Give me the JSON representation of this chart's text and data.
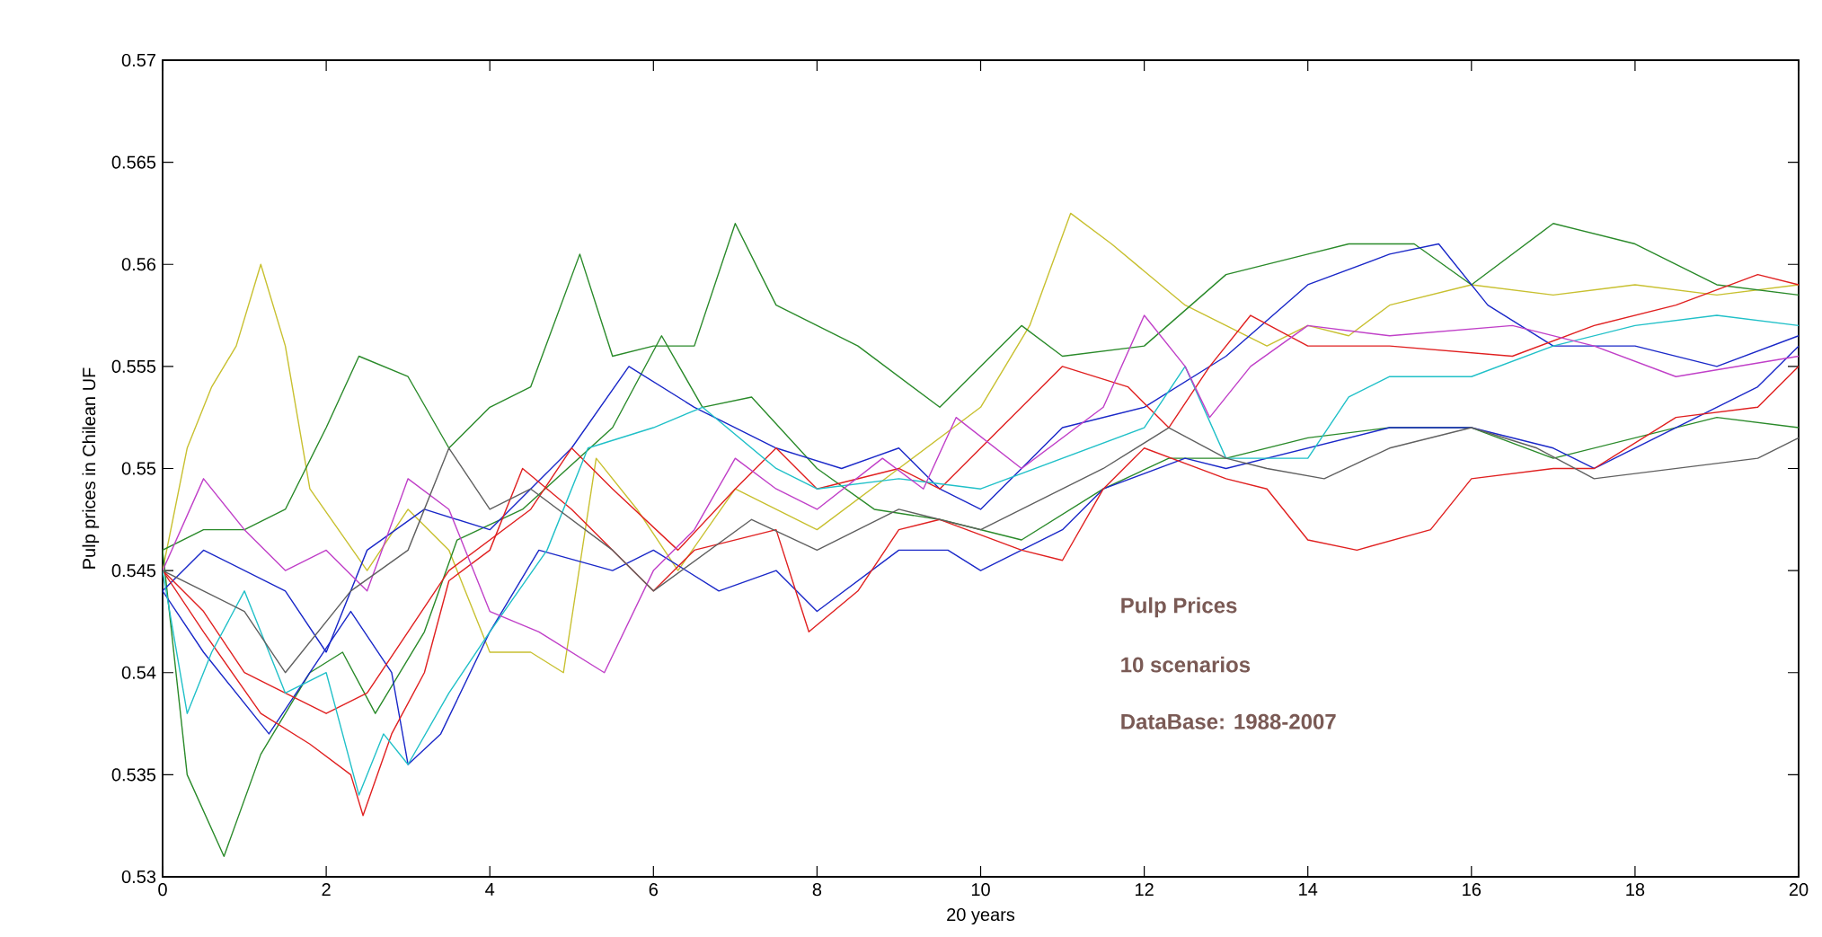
{
  "chart_data": {
    "type": "line",
    "xlabel": "20 years",
    "ylabel": "Pulp prices in Chilean UF",
    "annotations": [
      "Pulp Prices",
      "10 scenarios",
      "DataBase: 1988-2007"
    ],
    "xlim": [
      0,
      20
    ],
    "ylim": [
      0.53,
      0.57
    ],
    "xticks": [
      0,
      2,
      4,
      6,
      8,
      10,
      12,
      14,
      16,
      18,
      20
    ],
    "yticks": [
      0.53,
      0.535,
      0.54,
      0.545,
      0.55,
      0.555,
      0.56,
      0.565,
      0.57
    ],
    "series": [
      {
        "color": "#c8c030",
        "x": [
          0,
          0.3,
          0.6,
          0.9,
          1.2,
          1.5,
          1.8,
          2.5,
          3,
          3.5,
          4,
          4.5,
          4.9,
          5.3,
          5.8,
          6.3,
          7,
          8,
          9,
          10,
          10.6,
          11.1,
          11.6,
          12.5,
          13.5,
          14,
          14.5,
          15,
          16,
          17,
          18,
          19,
          20
        ],
        "values": [
          0.545,
          0.551,
          0.554,
          0.556,
          0.56,
          0.556,
          0.549,
          0.545,
          0.548,
          0.546,
          0.541,
          0.541,
          0.54,
          0.5505,
          0.548,
          0.545,
          0.549,
          0.547,
          0.55,
          0.553,
          0.557,
          0.5625,
          0.561,
          0.558,
          0.556,
          0.557,
          0.5565,
          0.558,
          0.559,
          0.5585,
          0.559,
          0.5585,
          0.559
        ]
      },
      {
        "color": "#2a8a2a",
        "x": [
          0,
          0.5,
          1,
          1.5,
          2,
          2.4,
          3,
          3.5,
          4,
          4.5,
          5.1,
          5.5,
          6,
          6.5,
          7,
          7.5,
          8.5,
          9.5,
          10.5,
          11,
          12,
          13,
          14,
          14.5,
          15.3,
          16,
          17,
          18,
          19,
          20
        ],
        "values": [
          0.546,
          0.547,
          0.547,
          0.548,
          0.552,
          0.5555,
          0.5545,
          0.551,
          0.553,
          0.554,
          0.5605,
          0.5555,
          0.556,
          0.556,
          0.562,
          0.558,
          0.556,
          0.553,
          0.557,
          0.5555,
          0.556,
          0.5595,
          0.5605,
          0.561,
          0.561,
          0.559,
          0.562,
          0.561,
          0.559,
          0.5585
        ]
      },
      {
        "color": "#2a8a2a",
        "x": [
          0,
          0.3,
          0.75,
          1.2,
          1.8,
          2.2,
          2.6,
          3.2,
          3.6,
          4.4,
          5.5,
          6.1,
          6.6,
          7.2,
          8,
          8.7,
          9.5,
          10.5,
          11.5,
          12.3,
          13,
          14,
          15,
          16,
          17,
          18,
          19,
          20
        ],
        "values": [
          0.546,
          0.535,
          0.531,
          0.536,
          0.54,
          0.541,
          0.538,
          0.542,
          0.5465,
          0.548,
          0.552,
          0.5565,
          0.553,
          0.5535,
          0.55,
          0.548,
          0.5475,
          0.5465,
          0.549,
          0.5505,
          0.5505,
          0.5515,
          0.552,
          0.552,
          0.5505,
          0.5515,
          0.5525,
          0.552
        ]
      },
      {
        "color": "#1a28c8",
        "x": [
          0,
          0.5,
          1.5,
          2,
          2.5,
          3.2,
          4,
          4.5,
          5,
          5.7,
          6.5,
          7.5,
          8.3,
          9,
          9.5,
          10,
          11,
          12,
          13,
          14,
          15,
          15.6,
          16.2,
          17,
          18,
          19,
          20
        ],
        "values": [
          0.544,
          0.546,
          0.544,
          0.541,
          0.546,
          0.548,
          0.547,
          0.549,
          0.551,
          0.555,
          0.553,
          0.551,
          0.55,
          0.551,
          0.549,
          0.548,
          0.552,
          0.553,
          0.5555,
          0.559,
          0.5605,
          0.561,
          0.558,
          0.556,
          0.556,
          0.555,
          0.5565
        ]
      },
      {
        "color": "#1a28c8",
        "x": [
          0,
          0.5,
          1.3,
          1.8,
          2.3,
          2.8,
          3,
          3.4,
          4,
          4.6,
          5.5,
          6,
          6.8,
          7.5,
          8,
          9,
          9.6,
          10,
          11,
          11.5,
          12.5,
          13,
          14,
          15,
          16,
          17,
          17.5,
          18.5,
          19.5,
          20
        ],
        "values": [
          0.544,
          0.541,
          0.537,
          0.54,
          0.543,
          0.54,
          0.5355,
          0.537,
          0.542,
          0.546,
          0.545,
          0.546,
          0.544,
          0.545,
          0.543,
          0.546,
          0.546,
          0.545,
          0.547,
          0.549,
          0.5505,
          0.55,
          0.551,
          0.552,
          0.552,
          0.551,
          0.55,
          0.552,
          0.554,
          0.556
        ]
      },
      {
        "color": "#e02020",
        "x": [
          0,
          0.5,
          1,
          2,
          2.5,
          3,
          3.5,
          4.5,
          5,
          5.5,
          6.3,
          7,
          7.5,
          8,
          9,
          9.5,
          10.5,
          11,
          11.8,
          12.3,
          12.8,
          13.3,
          14,
          15,
          16.5,
          17.5,
          18.5,
          19.5,
          20
        ],
        "values": [
          0.545,
          0.543,
          0.54,
          0.538,
          0.539,
          0.542,
          0.545,
          0.548,
          0.551,
          0.549,
          0.546,
          0.549,
          0.551,
          0.549,
          0.55,
          0.549,
          0.553,
          0.555,
          0.554,
          0.552,
          0.555,
          0.5575,
          0.556,
          0.556,
          0.5555,
          0.557,
          0.558,
          0.5595,
          0.559
        ]
      },
      {
        "color": "#e02020",
        "x": [
          0,
          0.5,
          1.2,
          1.8,
          2.3,
          2.45,
          2.8,
          3.2,
          3.5,
          4,
          4.4,
          5,
          6,
          6.5,
          7.5,
          7.9,
          8.5,
          9,
          9.5,
          10.5,
          11,
          11.5,
          12,
          13,
          13.5,
          14,
          14.6,
          15.5,
          16,
          17,
          17.5,
          18.5,
          19.5,
          20
        ],
        "values": [
          0.545,
          0.542,
          0.538,
          0.5365,
          0.535,
          0.533,
          0.537,
          0.54,
          0.5445,
          0.546,
          0.55,
          0.548,
          0.544,
          0.546,
          0.547,
          0.542,
          0.544,
          0.547,
          0.5475,
          0.546,
          0.5455,
          0.549,
          0.551,
          0.5495,
          0.549,
          0.5465,
          0.546,
          0.547,
          0.5495,
          0.55,
          0.55,
          0.5525,
          0.553,
          0.555
        ]
      },
      {
        "color": "#20c0c8",
        "x": [
          0,
          0.3,
          0.6,
          1,
          1.5,
          2,
          2.4,
          2.7,
          3,
          3.5,
          4,
          4.7,
          5.2,
          6,
          6.6,
          7.5,
          8,
          9,
          10,
          11,
          12,
          12.5,
          13,
          14,
          14.5,
          15,
          16,
          17,
          18,
          19,
          20
        ],
        "values": [
          0.545,
          0.538,
          0.541,
          0.544,
          0.539,
          0.54,
          0.534,
          0.537,
          0.5355,
          0.539,
          0.542,
          0.546,
          0.551,
          0.552,
          0.553,
          0.55,
          0.549,
          0.5495,
          0.549,
          0.5505,
          0.552,
          0.555,
          0.5505,
          0.5505,
          0.5535,
          0.5545,
          0.5545,
          0.556,
          0.557,
          0.5575,
          0.557
        ]
      },
      {
        "color": "#c040c8",
        "x": [
          0,
          0.5,
          1,
          1.5,
          2,
          2.5,
          3,
          3.5,
          4,
          4.6,
          5.4,
          6,
          6.5,
          7,
          7.5,
          8,
          8.8,
          9.3,
          9.7,
          10.5,
          11.5,
          12,
          12.5,
          12.8,
          13.3,
          14,
          15,
          16.5,
          17.5,
          18.5,
          20
        ],
        "values": [
          0.545,
          0.5495,
          0.547,
          0.545,
          0.546,
          0.544,
          0.5495,
          0.548,
          0.543,
          0.542,
          0.54,
          0.545,
          0.547,
          0.5505,
          0.549,
          0.548,
          0.5505,
          0.549,
          0.5525,
          0.55,
          0.553,
          0.5575,
          0.555,
          0.5525,
          0.555,
          0.557,
          0.5565,
          0.557,
          0.556,
          0.5545,
          0.5555
        ]
      },
      {
        "color": "#606060",
        "x": [
          0,
          1,
          1.5,
          2.3,
          3,
          3.5,
          4,
          4.5,
          5.5,
          6,
          7.2,
          8,
          9,
          10,
          10.5,
          11.5,
          12.3,
          13,
          13.5,
          14.2,
          15,
          16,
          16.8,
          17.5,
          18.5,
          19.5,
          20
        ],
        "values": [
          0.545,
          0.543,
          0.54,
          0.544,
          0.546,
          0.551,
          0.548,
          0.549,
          0.546,
          0.544,
          0.5475,
          0.546,
          0.548,
          0.547,
          0.548,
          0.55,
          0.552,
          0.5505,
          0.55,
          0.5495,
          0.551,
          0.552,
          0.551,
          0.5495,
          0.55,
          0.5505,
          0.5515
        ]
      }
    ]
  }
}
